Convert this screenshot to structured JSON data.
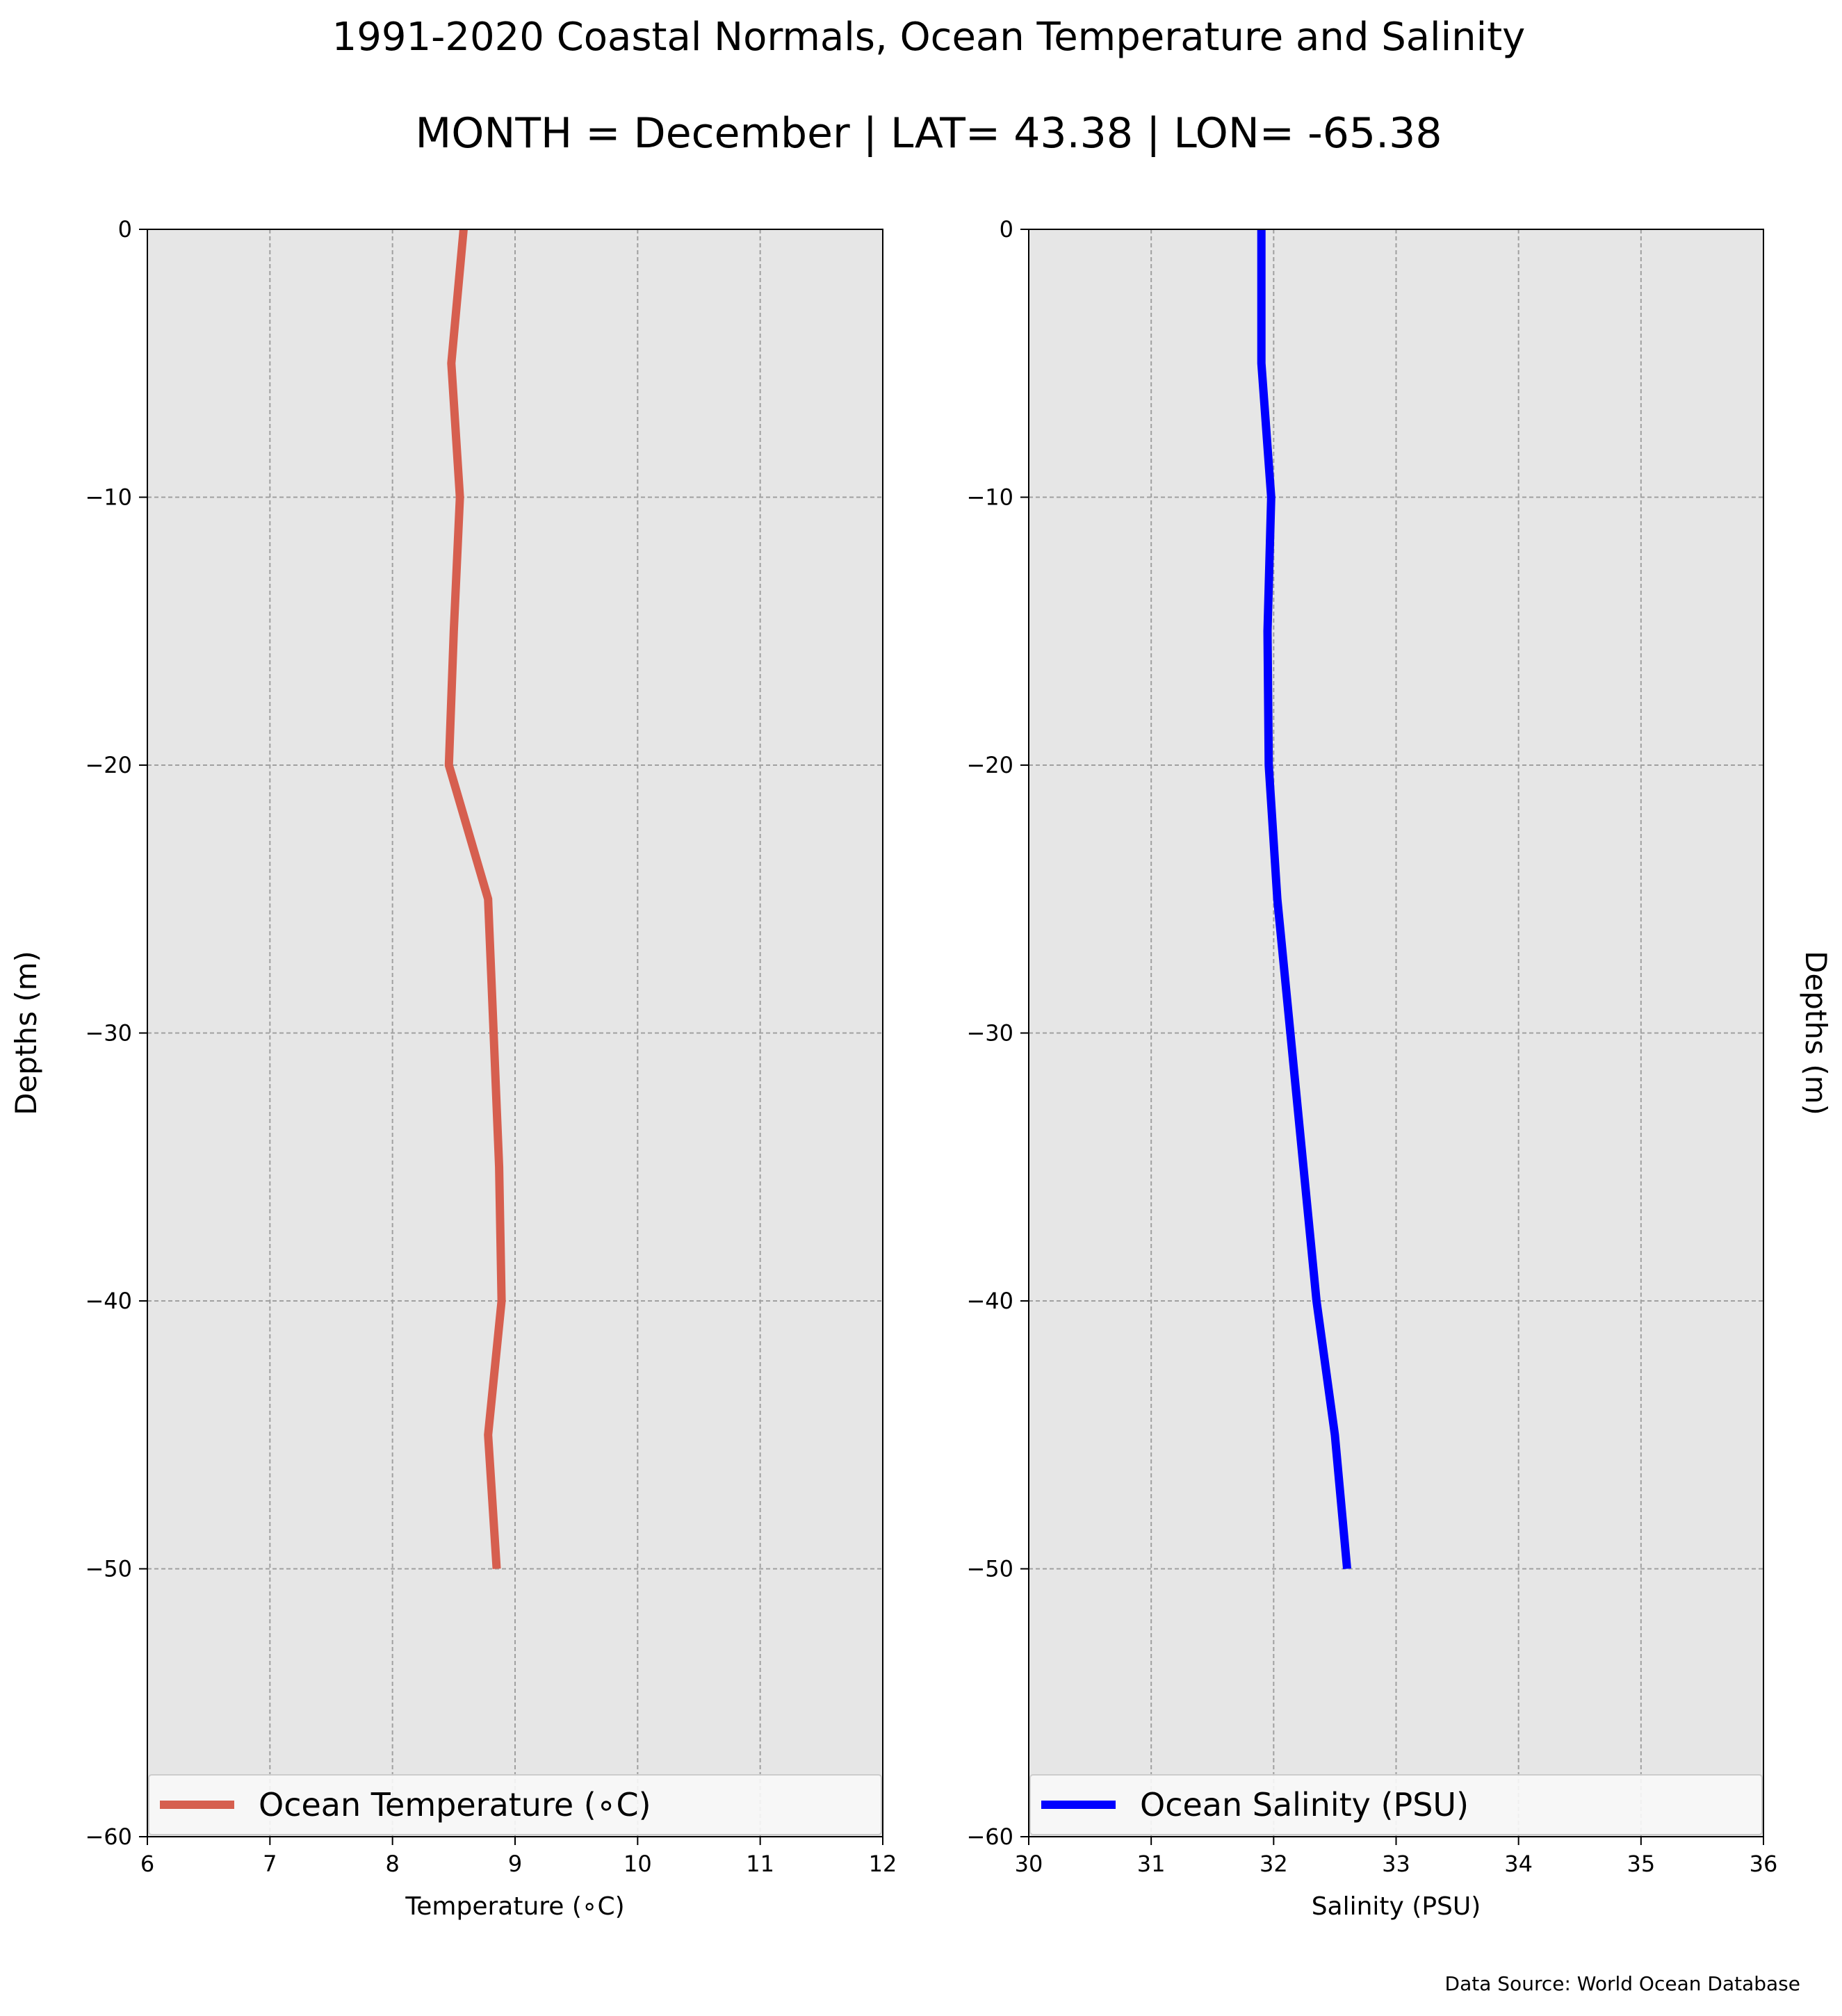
{
  "title": "1991-2020 Coastal Normals, Ocean Temperature and Salinity",
  "subtitle": "MONTH = December | LAT= 43.38 | LON= -65.38",
  "source": "Data Source: World Ocean Database",
  "chart_data": [
    {
      "type": "line",
      "series": [
        {
          "name": "Ocean Temperature (∘C)",
          "color": "#d65f4f",
          "x": [
            8.58,
            8.48,
            8.55,
            8.5,
            8.46,
            8.78,
            8.87,
            8.89,
            8.78,
            8.85
          ],
          "y": [
            0,
            -5,
            -10,
            -15,
            -20,
            -25,
            -35,
            -40,
            -45,
            -50
          ]
        }
      ],
      "xlabel": "Temperature (∘C)",
      "ylabel": "Depths (m)",
      "xlim": [
        6,
        12
      ],
      "ylim": [
        -60,
        0
      ],
      "xticks": [
        "6",
        "7",
        "8",
        "9",
        "10",
        "11",
        "12"
      ],
      "yticks": [
        "−60",
        "−50",
        "−40",
        "−30",
        "−20",
        "−10",
        "0"
      ],
      "grid": true,
      "legend_position": "lower-center"
    },
    {
      "type": "line",
      "series": [
        {
          "name": "Ocean Salinity (PSU)",
          "color": "#0000ff",
          "x": [
            31.9,
            31.9,
            31.98,
            31.95,
            31.96,
            32.03,
            32.35,
            32.5,
            32.6
          ],
          "y": [
            0,
            -5,
            -10,
            -15,
            -20,
            -25,
            -40,
            -45,
            -50
          ]
        }
      ],
      "xlabel": "Salinity (PSU)",
      "ylabel": "Depths (m)",
      "xlim": [
        30,
        36
      ],
      "ylim": [
        -60,
        0
      ],
      "xticks": [
        "30",
        "31",
        "32",
        "33",
        "34",
        "35",
        "36"
      ],
      "yticks": [
        "−60",
        "−50",
        "−40",
        "−30",
        "−20",
        "−10",
        "0"
      ],
      "grid": true,
      "legend_position": "lower-center"
    }
  ]
}
